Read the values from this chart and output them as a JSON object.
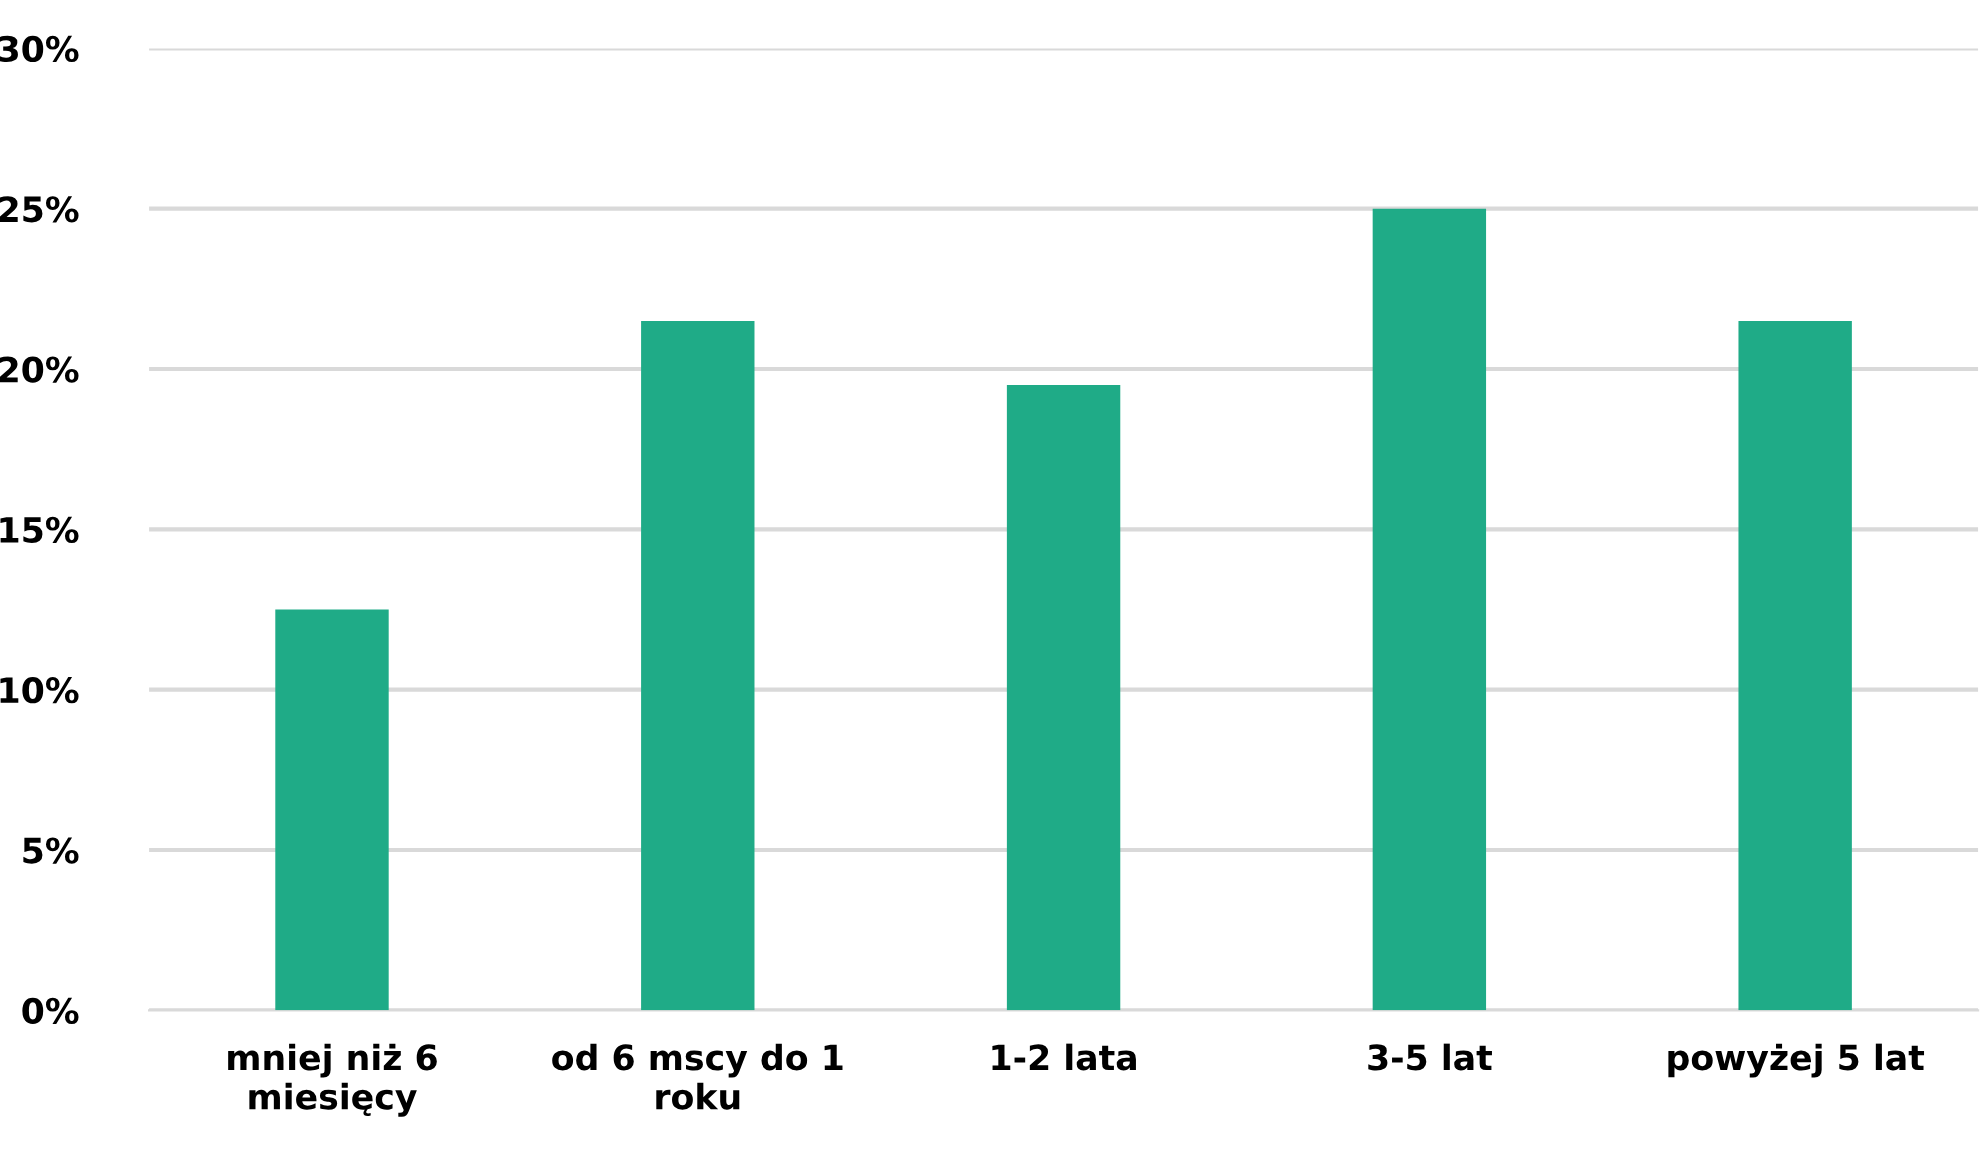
{
  "chart_data": {
    "type": "bar",
    "categories": [
      "mniej niż 6 miesięcy",
      "od 6 mscy do 1 roku",
      "1-2 lata",
      "3-5 lat",
      "powyżej 5 lat"
    ],
    "values": [
      12.5,
      21.5,
      19.5,
      25,
      21.5
    ],
    "color": "#1fab87",
    "ylim": [
      0,
      30
    ],
    "yticks": [
      {
        "value": 0,
        "label": "0%"
      },
      {
        "value": 5,
        "label": "5%"
      },
      {
        "value": 10,
        "label": "10%"
      },
      {
        "value": 15,
        "label": "15%"
      },
      {
        "value": 20,
        "label": "20%"
      },
      {
        "value": 25,
        "label": "25%"
      },
      {
        "value": 30,
        "label": "30%"
      }
    ],
    "grid": "y"
  }
}
